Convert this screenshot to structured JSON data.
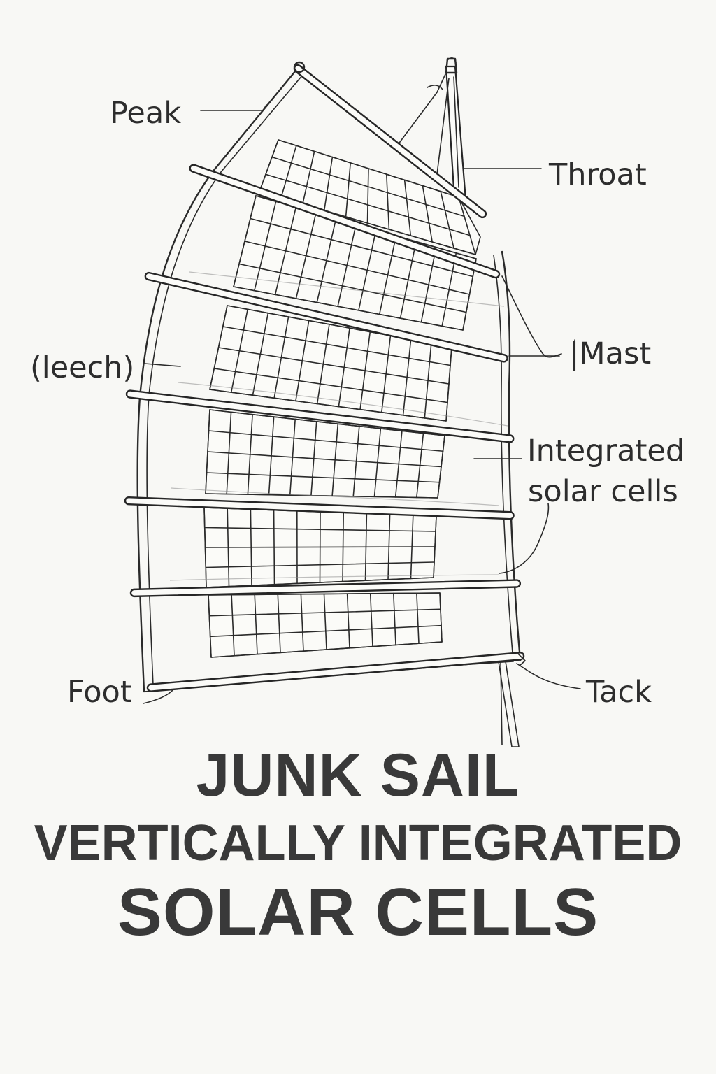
{
  "labels": {
    "peak": "Peak",
    "throat": "Throat",
    "leech": "(leech)",
    "mast": "|Mast",
    "solar_line1": "Integrated",
    "solar_line2": "solar cells",
    "foot": "Foot",
    "tack": "Tack"
  },
  "title": {
    "line1": "JUNK SAIL",
    "line2": "VERTICALLY INTEGRATED",
    "line3": "SOLAR CELLS"
  },
  "colors": {
    "background": "#f8f8f5",
    "ink": "#2a2a2a",
    "title": "#393939"
  }
}
